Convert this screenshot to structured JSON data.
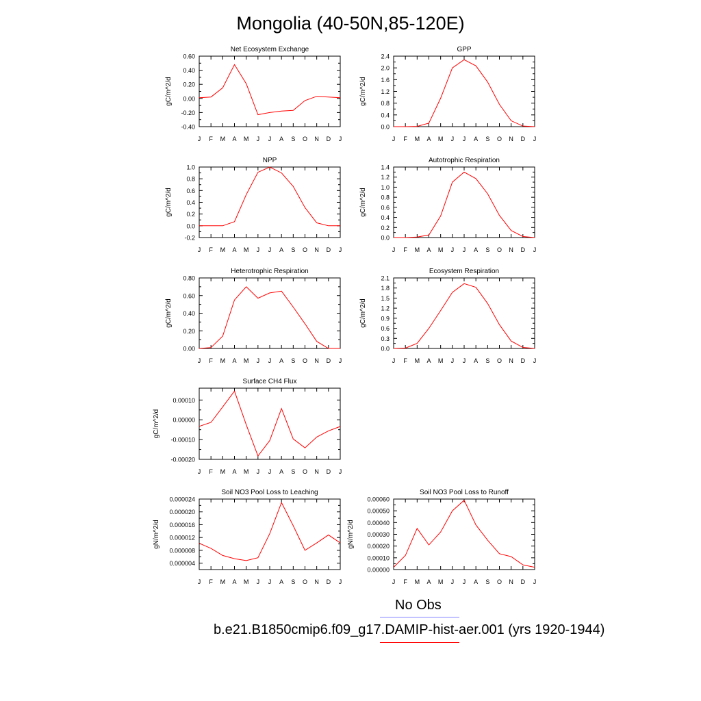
{
  "figure": {
    "title": "Mongolia (40-50N,85-120E)"
  },
  "legend": {
    "entries": [
      {
        "label": "No Obs",
        "color": "#8080ff"
      },
      {
        "label": "b.e21.B1850cmip6.f09_g17.DAMIP-hist-aer.001 (yrs 1920-1944)",
        "color": "#ff0000"
      }
    ]
  },
  "chart_data": [
    {
      "type": "line",
      "title": "Net Ecosystem Exchange",
      "ylabel": "gC/m^2/d",
      "x": [
        "J",
        "F",
        "M",
        "A",
        "M",
        "J",
        "J",
        "A",
        "S",
        "O",
        "N",
        "D",
        "J"
      ],
      "ylim": [
        -0.4,
        0.6
      ],
      "yticks": [
        "-0.40",
        "-0.20",
        "0.00",
        "0.20",
        "0.40",
        "0.60"
      ],
      "series": [
        {
          "color": "#ff0000",
          "values": [
            0.01,
            0.02,
            0.15,
            0.48,
            0.21,
            -0.23,
            -0.2,
            -0.18,
            -0.17,
            -0.03,
            0.03,
            0.02,
            0.01
          ]
        }
      ]
    },
    {
      "type": "line",
      "title": "GPP",
      "ylabel": "gC/m^2/d",
      "x": [
        "J",
        "F",
        "M",
        "A",
        "M",
        "J",
        "J",
        "A",
        "S",
        "O",
        "N",
        "D",
        "J"
      ],
      "ylim": [
        0,
        2.4
      ],
      "yticks": [
        "0.0",
        "0.4",
        "0.8",
        "1.2",
        "1.6",
        "2.0",
        "2.4"
      ],
      "series": [
        {
          "color": "#ff0000",
          "values": [
            0,
            0,
            0.01,
            0.12,
            0.97,
            2.0,
            2.28,
            2.07,
            1.52,
            0.76,
            0.2,
            0.02,
            0
          ]
        }
      ]
    },
    {
      "type": "line",
      "title": "NPP",
      "ylabel": "gC/m^2/d",
      "x": [
        "J",
        "F",
        "M",
        "A",
        "M",
        "J",
        "J",
        "A",
        "S",
        "O",
        "N",
        "D",
        "J"
      ],
      "ylim": [
        -0.2,
        1.0
      ],
      "yticks": [
        "-0.2",
        "0.0",
        "0.2",
        "0.4",
        "0.6",
        "0.8",
        "1.0"
      ],
      "series": [
        {
          "color": "#ff0000",
          "values": [
            0,
            0,
            0.0,
            0.07,
            0.53,
            0.91,
            1.0,
            0.9,
            0.67,
            0.31,
            0.05,
            0,
            0
          ]
        }
      ]
    },
    {
      "type": "line",
      "title": "Autotrophic Respiration",
      "ylabel": "gC/m^2/d",
      "x": [
        "J",
        "F",
        "M",
        "A",
        "M",
        "J",
        "J",
        "A",
        "S",
        "O",
        "N",
        "D",
        "J"
      ],
      "ylim": [
        0,
        1.4
      ],
      "yticks": [
        "0.0",
        "0.2",
        "0.4",
        "0.6",
        "0.8",
        "1.0",
        "1.2",
        "1.4"
      ],
      "series": [
        {
          "color": "#ff0000",
          "values": [
            0,
            0,
            0.01,
            0.05,
            0.43,
            1.1,
            1.3,
            1.17,
            0.87,
            0.44,
            0.14,
            0.02,
            0
          ]
        }
      ]
    },
    {
      "type": "line",
      "title": "Heterotrophic Respiration",
      "ylabel": "gC/m^2/d",
      "x": [
        "J",
        "F",
        "M",
        "A",
        "M",
        "J",
        "J",
        "A",
        "S",
        "O",
        "N",
        "D",
        "J"
      ],
      "ylim": [
        0,
        0.8
      ],
      "yticks": [
        "0.00",
        "0.20",
        "0.40",
        "0.60",
        "0.80"
      ],
      "series": [
        {
          "color": "#ff0000",
          "values": [
            0,
            0.01,
            0.14,
            0.55,
            0.7,
            0.57,
            0.63,
            0.65,
            0.47,
            0.28,
            0.08,
            0.0,
            0
          ]
        }
      ]
    },
    {
      "type": "line",
      "title": "Ecosystem Respiration",
      "ylabel": "gC/m^2/d",
      "x": [
        "J",
        "F",
        "M",
        "A",
        "M",
        "J",
        "J",
        "A",
        "S",
        "O",
        "N",
        "D",
        "J"
      ],
      "ylim": [
        0,
        2.1
      ],
      "yticks": [
        "0.0",
        "0.3",
        "0.6",
        "0.9",
        "1.2",
        "1.5",
        "1.8",
        "2.1"
      ],
      "series": [
        {
          "color": "#ff0000",
          "values": [
            0,
            0.01,
            0.15,
            0.6,
            1.13,
            1.67,
            1.93,
            1.82,
            1.34,
            0.71,
            0.22,
            0.03,
            0
          ]
        }
      ]
    },
    {
      "type": "line",
      "title": "Surface CH4 Flux",
      "ylabel": "gC/m^2/d",
      "x": [
        "J",
        "F",
        "M",
        "A",
        "M",
        "J",
        "J",
        "A",
        "S",
        "O",
        "N",
        "D",
        "J"
      ],
      "ylim": [
        -0.0002,
        0.00016
      ],
      "yticks": [
        "-0.00020",
        "-0.00010",
        "0.00000",
        "0.00010"
      ],
      "series": [
        {
          "color": "#ff0000",
          "values": [
            -3.3e-05,
            -1.3e-05,
            6.5e-05,
            0.000145,
            -2.5e-05,
            -0.000183,
            -0.000105,
            5.7e-05,
            -9.7e-05,
            -0.000142,
            -8.7e-05,
            -5.6e-05,
            -3.4e-05
          ]
        }
      ]
    },
    {
      "type": "line",
      "title": "Soil NO3 Pool Loss to Leaching",
      "ylabel": "gN/m^2/d",
      "x": [
        "J",
        "F",
        "M",
        "A",
        "M",
        "J",
        "J",
        "A",
        "S",
        "O",
        "N",
        "D",
        "J"
      ],
      "ylim": [
        2e-06,
        2.4e-05
      ],
      "yticks": [
        "0.000004",
        "0.000008",
        "0.000012",
        "0.000016",
        "0.000020",
        "0.000024"
      ],
      "series": [
        {
          "color": "#ff0000",
          "values": [
            1.02e-05,
            8.6e-06,
            6.4e-06,
            5.4e-06,
            4.8e-06,
            5.7e-06,
            1.32e-05,
            2.29e-05,
            1.57e-05,
            8e-06,
            1.03e-05,
            1.28e-05,
            1.03e-05
          ]
        }
      ]
    },
    {
      "type": "line",
      "title": "Soil NO3 Pool Loss to Runoff",
      "ylabel": "gN/m^2/d",
      "x": [
        "J",
        "F",
        "M",
        "A",
        "M",
        "J",
        "J",
        "A",
        "S",
        "O",
        "N",
        "D",
        "J"
      ],
      "ylim": [
        0,
        0.0006
      ],
      "yticks": [
        "0.00000",
        "0.00010",
        "0.00020",
        "0.00030",
        "0.00040",
        "0.00050",
        "0.00060"
      ],
      "series": [
        {
          "color": "#ff0000",
          "values": [
            2e-05,
            0.00012,
            0.00035,
            0.00021,
            0.00032,
            0.0005,
            0.00059,
            0.00038,
            0.00025,
            0.000135,
            0.00011,
            4e-05,
            2e-05
          ]
        }
      ]
    }
  ]
}
